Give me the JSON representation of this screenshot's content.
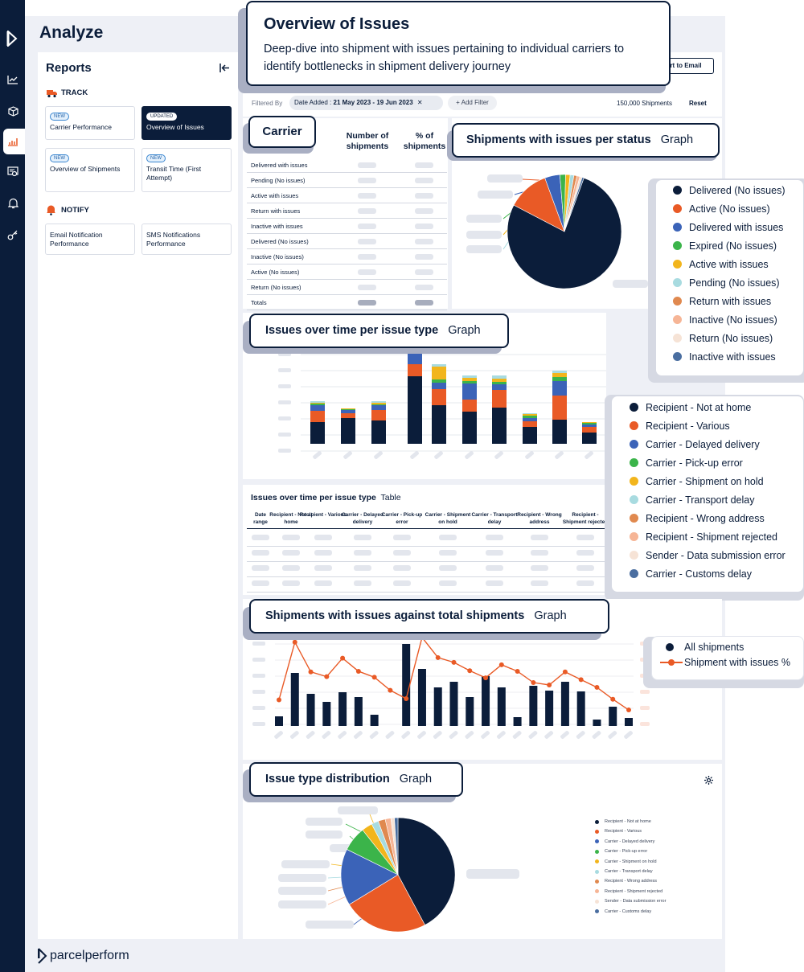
{
  "app": {
    "title": "Analyze",
    "brand": "parcelperform"
  },
  "sidebar": {
    "reports_title": "Reports",
    "track_label": "TRACK",
    "notify_label": "NOTIFY",
    "cards": [
      {
        "badge": "NEW",
        "label": "Carrier Performance"
      },
      {
        "badge": "UPDATED",
        "label": "Overview of Issues"
      },
      {
        "badge": "NEW",
        "label": "Overview of Shipments"
      },
      {
        "badge": "NEW",
        "label": "Transit Time (First Attempt)"
      },
      {
        "label": "Email Notification Performance"
      },
      {
        "label": "SMS Notifications Performance"
      }
    ]
  },
  "header": {
    "callout_title": "Overview of Issues",
    "callout_desc": "Deep-dive into shipment with issues pertaining to individual carriers to identify bottlenecks in shipment delivery journey",
    "export_label": "rt to Email"
  },
  "filters": {
    "filtered_by": "Filtered By",
    "chip_label": "Date Added :",
    "chip_value": "21 May 2023 - 19 Jun 2023",
    "add_filter": "+ Add Filter",
    "count": "150,000 Shipments",
    "reset": "Reset"
  },
  "carrier_table": {
    "callout": "Carrier",
    "col1": "Number of shipments",
    "col2": "% of shipments",
    "rows": [
      "Delivered with issues",
      "Pending (No issues)",
      "Active with issues",
      "Return with issues",
      "Inactive with issues",
      "Delivered (No issues)",
      "Inactive (No issues)",
      "Active (No issues)",
      "Return (No issues)",
      "Totals"
    ]
  },
  "status_chart": {
    "callout_title": "Shipments with issues per status",
    "callout_tag": "Graph",
    "legend": [
      {
        "label": "Delivered (No issues)",
        "color": "#0b1d3a"
      },
      {
        "label": "Active (No issues)",
        "color": "#e95a26"
      },
      {
        "label": "Delivered with issues",
        "color": "#3b63b8"
      },
      {
        "label": "Expired (No issues)",
        "color": "#3bb44a"
      },
      {
        "label": "Active with issues",
        "color": "#f2b51c"
      },
      {
        "label": "Pending (No issues)",
        "color": "#a8dbe0"
      },
      {
        "label": "Return with issues",
        "color": "#e0894f"
      },
      {
        "label": "Inactive (No issues)",
        "color": "#f6b596"
      },
      {
        "label": "Return (No issues)",
        "color": "#f6e3d6"
      },
      {
        "label": "Inactive with issues",
        "color": "#4a6ea0"
      }
    ]
  },
  "issues_time": {
    "callout_title": "Issues over time per issue type",
    "callout_tag": "Graph",
    "legend": [
      {
        "label": "Recipient - Not at home",
        "color": "#0b1d3a"
      },
      {
        "label": "Recipient - Various",
        "color": "#e95a26"
      },
      {
        "label": "Carrier - Delayed delivery",
        "color": "#3b63b8"
      },
      {
        "label": "Carrier - Pick-up error",
        "color": "#3bb44a"
      },
      {
        "label": "Carrier - Shipment on hold",
        "color": "#f2b51c"
      },
      {
        "label": "Carrier - Transport delay",
        "color": "#a8dbe0"
      },
      {
        "label": "Recipient - Wrong address",
        "color": "#e0894f"
      },
      {
        "label": "Recipient - Shipment rejected",
        "color": "#f6b596"
      },
      {
        "label": "Sender - Data submission error",
        "color": "#f6e3d6"
      },
      {
        "label": "Carrier - Customs delay",
        "color": "#4a6ea0"
      }
    ]
  },
  "issues_table": {
    "title": "Issues over time per issue type",
    "tag": "Table",
    "headers": [
      "Date range",
      "Recipient - Not at home",
      "Recipient - Various",
      "Carrier - Delayed delivery",
      "Carrier - Pick-up error",
      "Carrier - Shipment on hold",
      "Carrier - Transport delay",
      "Recipient - Wrong address",
      "Recipient - Shipment rejected"
    ]
  },
  "vs_total": {
    "callout_title": "Shipments with issues against total shipments",
    "callout_tag": "Graph",
    "legend_bar": "All shipments",
    "legend_line": "Shipment with issues %"
  },
  "distribution": {
    "callout_title": "Issue type distribution",
    "callout_tag": "Graph",
    "legend": [
      "Recipient - Not at home",
      "Recipient - Various",
      "Carrier - Delayed delivery",
      "Carrier - Pick-up error",
      "Carrier - Shipment on hold",
      "Carrier - Transport delay",
      "Recipient - Wrong address",
      "Recipient - Shipment rejected",
      "Sender - Data submission error",
      "Carrier - Customs delay"
    ]
  }
}
